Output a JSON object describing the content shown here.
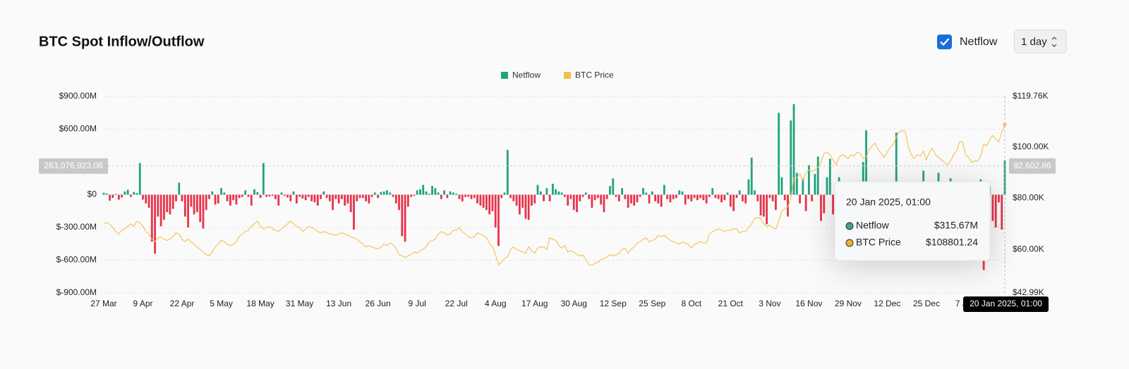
{
  "chart_data": {
    "type": "bar",
    "title": "BTC Spot Inflow/Outflow",
    "controls": {
      "toggle": "Netflow",
      "interval": "1 day"
    },
    "xlim": [
      0,
      299
    ],
    "xticks": [
      {
        "value": 0,
        "label": "27 Mar"
      },
      {
        "value": 13,
        "label": "9 Apr"
      },
      {
        "value": 26,
        "label": "22 Apr"
      },
      {
        "value": 39,
        "label": "5 May"
      },
      {
        "value": 52,
        "label": "18 May"
      },
      {
        "value": 65,
        "label": "31 May"
      },
      {
        "value": 78,
        "label": "13 Jun"
      },
      {
        "value": 91,
        "label": "26 Jun"
      },
      {
        "value": 104,
        "label": "9 Jul"
      },
      {
        "value": 117,
        "label": "22 Jul"
      },
      {
        "value": 130,
        "label": "4 Aug"
      },
      {
        "value": 143,
        "label": "17 Aug"
      },
      {
        "value": 156,
        "label": "30 Aug"
      },
      {
        "value": 169,
        "label": "12 Sep"
      },
      {
        "value": 182,
        "label": "25 Sep"
      },
      {
        "value": 195,
        "label": "8 Oct"
      },
      {
        "value": 208,
        "label": "21 Oct"
      },
      {
        "value": 221,
        "label": "3 Nov"
      },
      {
        "value": 234,
        "label": "16 Nov"
      },
      {
        "value": 247,
        "label": "29 Nov"
      },
      {
        "value": 260,
        "label": "12 Dec"
      },
      {
        "value": 273,
        "label": "25 Dec"
      },
      {
        "value": 286,
        "label": "7 Jan"
      }
    ],
    "ylim": [
      -900,
      900
    ],
    "yticks": [
      {
        "value": 900,
        "label": "$900.00M"
      },
      {
        "value": 600,
        "label": "$600.00M"
      },
      {
        "value": 0,
        "label": "$0"
      },
      {
        "value": -300,
        "label": "$-300.00M"
      },
      {
        "value": -600,
        "label": "$-600.00M"
      },
      {
        "value": -900,
        "label": "$-900.00M"
      }
    ],
    "y2lim": [
      42.99,
      119.76
    ],
    "y2ticks": [
      {
        "value": 119.76,
        "label": "$119.76K"
      },
      {
        "value": 100,
        "label": "$100.00K"
      },
      {
        "value": 80,
        "label": "$80.00K"
      },
      {
        "value": 60,
        "label": "$60.00K"
      },
      {
        "value": 42.99,
        "label": "$42.99K"
      }
    ],
    "grid": true,
    "legend": "top",
    "series": [
      {
        "name": "Netflow",
        "type": "bar",
        "color": "#1fa37e",
        "negative_color": "#e8334a",
        "values": [
          18,
          12,
          -55,
          -30,
          8,
          -45,
          -25,
          30,
          45,
          -20,
          25,
          15,
          290,
          -45,
          -80,
          -120,
          -430,
          -540,
          -200,
          -290,
          -230,
          -160,
          -180,
          -130,
          -60,
          110,
          -60,
          -200,
          -300,
          -110,
          -180,
          -160,
          -250,
          -310,
          -140,
          -40,
          30,
          -90,
          -80,
          60,
          20,
          -60,
          -100,
          -50,
          -90,
          -30,
          -20,
          40,
          -20,
          -100,
          50,
          25,
          -30,
          290,
          -20,
          -15,
          -10,
          -40,
          -100,
          20,
          -10,
          -25,
          -60,
          30,
          -80,
          -20,
          -35,
          -50,
          -20,
          -60,
          -70,
          -100,
          -40,
          30,
          -30,
          -60,
          -140,
          -40,
          -80,
          -40,
          -100,
          -80,
          -160,
          -320,
          -60,
          -30,
          -30,
          -60,
          -80,
          -20,
          20,
          -30,
          25,
          30,
          40,
          20,
          -20,
          -80,
          -140,
          -380,
          -430,
          -110,
          -20,
          -10,
          40,
          50,
          90,
          30,
          10,
          80,
          60,
          20,
          -40,
          40,
          -30,
          30,
          20,
          10,
          -40,
          -60,
          -20,
          -20,
          -40,
          -30,
          -80,
          -100,
          -120,
          -140,
          -180,
          -150,
          -300,
          -470,
          -30,
          20,
          410,
          -30,
          -60,
          -100,
          -180,
          -120,
          -220,
          -230,
          -100,
          -80,
          90,
          30,
          -60,
          60,
          -60,
          100,
          50,
          30,
          20,
          -20,
          -100,
          -40,
          -140,
          -160,
          -60,
          -20,
          20,
          -40,
          -120,
          -50,
          -30,
          -90,
          -160,
          -40,
          80,
          150,
          -20,
          -60,
          60,
          -40,
          -120,
          -80,
          -100,
          -70,
          -20,
          60,
          20,
          -80,
          30,
          -60,
          -80,
          -110,
          90,
          -40,
          -70,
          -40,
          -30,
          40,
          30,
          -90,
          -40,
          -60,
          -30,
          -50,
          -30,
          -50,
          -80,
          -20,
          60,
          -30,
          -40,
          -70,
          -50,
          20,
          -110,
          -150,
          -30,
          40,
          -60,
          -80,
          140,
          340,
          40,
          -60,
          -190,
          -200,
          -270,
          -30,
          -60,
          -140,
          750,
          160,
          -50,
          -200,
          680,
          830,
          200,
          -80,
          150,
          -150,
          270,
          -60,
          190,
          350,
          -240,
          -170,
          160,
          330,
          -180,
          -540,
          160,
          -410,
          -200,
          -150,
          60,
          -200,
          -100,
          80,
          300,
          590,
          -170,
          -280,
          -290,
          -490,
          -100,
          -80,
          -300,
          60,
          -100,
          570,
          -180,
          120,
          -530,
          -200,
          30,
          -60,
          -150,
          -90,
          220,
          120,
          -100,
          -130,
          -220,
          200,
          -70,
          -80,
          -120,
          150,
          -100,
          -200,
          -250,
          -130,
          -90,
          60,
          -300,
          -80,
          -180,
          140,
          -690,
          -140,
          80,
          -240,
          -300,
          -70,
          -320,
          315.67
        ]
      },
      {
        "name": "BTC Price",
        "type": "line",
        "axis": "y2",
        "color": "#f5c04a",
        "values": [
          70,
          70.5,
          69.8,
          68.5,
          67,
          66,
          67.5,
          68,
          69,
          70,
          69,
          71,
          70.5,
          69,
          67,
          66,
          64,
          63,
          64.5,
          65,
          64,
          63.5,
          64,
          65,
          66.5,
          66,
          64,
          63,
          64,
          63,
          62,
          61,
          60,
          59,
          58,
          57.5,
          59,
          61,
          62,
          63.5,
          63,
          62,
          61.5,
          62,
          63,
          65,
          66,
          67,
          67.5,
          69,
          70,
          71,
          69,
          68,
          68.5,
          69,
          68,
          67.5,
          67,
          68,
          69,
          70,
          71,
          70,
          69,
          68.5,
          67,
          68,
          69,
          68.5,
          68,
          67,
          66.5,
          67,
          66.5,
          66,
          66,
          65.5,
          66,
          66.5,
          66,
          65.5,
          65,
          64.5,
          64,
          63,
          62,
          61,
          61.5,
          61,
          60.5,
          60.2,
          61,
          62,
          61.5,
          62.5,
          62,
          60.5,
          58,
          57.5,
          56.8,
          57.5,
          58,
          59,
          58.5,
          59.5,
          60,
          61,
          63,
          63.5,
          64,
          66,
          67,
          66.5,
          65.5,
          66,
          67.5,
          67.5,
          68.5,
          67,
          66,
          65,
          64.5,
          65,
          66.5,
          66,
          65.5,
          64.5,
          62.5,
          61,
          58,
          54,
          55,
          56.5,
          57,
          60,
          61,
          60,
          59.5,
          59,
          58.5,
          61,
          59.5,
          58.5,
          60.5,
          61,
          61,
          60,
          64.5,
          64,
          63.5,
          61.5,
          60.5,
          61.5,
          59,
          59.5,
          59,
          58,
          57.5,
          57.8,
          56,
          54,
          53.8,
          54.5,
          55,
          56,
          56.5,
          57,
          58,
          57.5,
          57.8,
          58.5,
          60,
          60.5,
          58.5,
          60,
          61,
          62.5,
          63,
          64,
          64.5,
          63,
          63.5,
          64,
          65.5,
          65,
          65.5,
          64.5,
          63.5,
          63,
          62.5,
          62,
          63,
          62.5,
          62,
          60.5,
          62,
          62.5,
          63,
          62.5,
          62.5,
          66,
          67,
          67.5,
          68,
          67.5,
          67,
          67.5,
          67.5,
          68,
          68,
          66.5,
          67,
          67,
          68.5,
          70,
          72,
          72.5,
          72,
          70,
          69,
          69.5,
          68.5,
          68,
          71,
          75,
          76,
          76.5,
          80,
          88,
          88,
          89.5,
          87,
          90,
          91,
          90.5,
          91,
          92,
          94,
          97.5,
          98,
          97,
          95,
          93,
          96,
          97,
          96.5,
          95.5,
          97,
          96.5,
          98,
          97.5,
          95.5,
          96,
          99,
          100.5,
          101.5,
          99,
          97.5,
          96,
          98,
          100,
          101,
          104,
          106,
          106.5,
          106,
          100,
          97,
          95.5,
          97,
          96.5,
          98.5,
          95,
          98,
          99.5,
          97,
          96,
          95,
          94,
          93,
          94.5,
          97,
          98.5,
          102,
          102,
          97,
          96,
          94,
          94.5,
          94.5,
          96.5,
          101,
          100.5,
          103,
          104.5,
          103,
          102,
          106,
          108.80124
        ]
      }
    ],
    "crosshair": {
      "index": 299,
      "x_label": "20 Jan 2025, 01:00",
      "y": 263.07692308,
      "y_label": "263,076,923.08",
      "y2": 92.60286,
      "y2_label": "92,602.86"
    },
    "tooltip": {
      "title": "20 Jan 2025, 01:00",
      "value_labels": [
        "$315.67M",
        "$108801.24"
      ]
    }
  }
}
